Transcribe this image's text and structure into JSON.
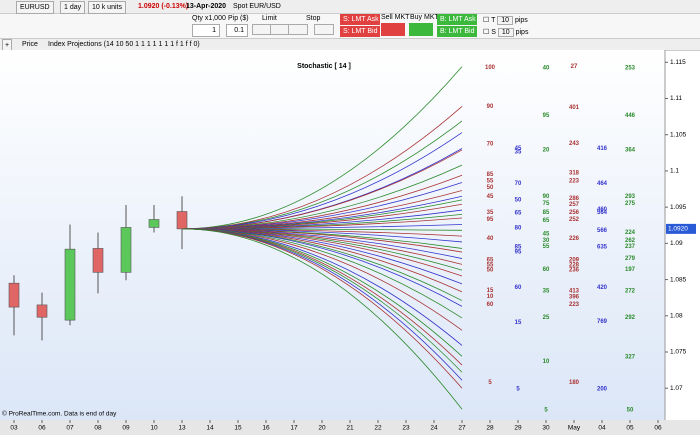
{
  "toolbar": {
    "symbol": "EURUSD",
    "period": "1 day",
    "units": "10 k units",
    "price_change": "1.0920 (-0.13%)",
    "date": "13-Apr-2020",
    "instrument": "Spot EUR/USD"
  },
  "order": {
    "qty_label": "Qty x1,000",
    "pip_label": "Pip ($)",
    "qty": "1",
    "pip": "0.1",
    "limit": "Limit",
    "stop": "Stop",
    "sell_ask": "S: LMT Ask",
    "sell_bid": "S: LMT Bid",
    "sell_mkt": "Sell MKT",
    "buy_mkt": "Buy MKT",
    "buy_ask": "B: LMT Ask",
    "buy_bid": "B: LMT Bid",
    "t": "T",
    "t_pips": "10",
    "pips1": "pips",
    "s": "S",
    "s_pips": "10",
    "pips2": "pips"
  },
  "panel": {
    "plus": "+",
    "price": "Price",
    "indicator": "Index Projections (14 10 50 1 1 1 1 1 1 1 f 1 f f 0)"
  },
  "chart_data": {
    "type": "candlestick",
    "title": "Stochastic [ 14 ]",
    "source": "© ProRealTime.com. Data is end of day",
    "categories": [
      "03",
      "06",
      "07",
      "08",
      "09",
      "10",
      "13",
      "14",
      "15",
      "16",
      "17",
      "20",
      "21",
      "22",
      "23",
      "24",
      "27",
      "28",
      "29",
      "30",
      "May",
      "04",
      "05",
      "06"
    ],
    "open": [
      1.0845,
      1.0815,
      1.0794,
      1.0893,
      1.086,
      1.0922,
      1.0944,
      null,
      null,
      null,
      null,
      null,
      null,
      null,
      null,
      null,
      null,
      null,
      null,
      null,
      null,
      null,
      null,
      null
    ],
    "high": [
      1.0856,
      1.0832,
      1.0926,
      1.0915,
      1.0953,
      1.0953,
      1.0965,
      null,
      null,
      null,
      null,
      null,
      null,
      null,
      null,
      null,
      null,
      null,
      null,
      null,
      null,
      null,
      null,
      null
    ],
    "low": [
      1.0773,
      1.0766,
      1.0787,
      1.0831,
      1.0849,
      1.0915,
      1.0892,
      null,
      null,
      null,
      null,
      null,
      null,
      null,
      null,
      null,
      null,
      null,
      null,
      null,
      null,
      null,
      null,
      null
    ],
    "close": [
      1.0812,
      1.0798,
      1.0892,
      1.086,
      1.0922,
      1.0933,
      1.092,
      null,
      null,
      null,
      null,
      null,
      null,
      null,
      null,
      null,
      null,
      null,
      null,
      null,
      null,
      null,
      null,
      null
    ],
    "up_color": "#5cc85c",
    "down_color": "#e06666",
    "ylim": [
      1.0663,
      1.1167
    ],
    "yticks": [
      1.07,
      1.075,
      1.08,
      1.085,
      1.09,
      1.095,
      1.1,
      1.105,
      1.11,
      1.115
    ],
    "last_price": {
      "value": 1.092,
      "label": "1.0920"
    },
    "projections": [
      {
        "color": "#2a8a2a",
        "values": [
          1.092,
          1.1144
        ]
      },
      {
        "color": "#a33",
        "values": [
          1.092,
          1.1089
        ]
      },
      {
        "color": "#2a8a2a",
        "values": [
          1.092,
          1.1069
        ]
      },
      {
        "color": "#33c",
        "values": [
          1.092,
          1.1053
        ]
      },
      {
        "color": "#33c",
        "values": [
          1.092,
          1.1031
        ]
      },
      {
        "color": "#a33",
        "values": [
          1.092,
          1.1029
        ]
      },
      {
        "color": "#2a8a2a",
        "values": [
          1.092,
          1.1008
        ]
      },
      {
        "color": "#a33",
        "values": [
          1.092,
          1.0994
        ]
      },
      {
        "color": "#33c",
        "values": [
          1.092,
          1.0984
        ]
      },
      {
        "color": "#a33",
        "values": [
          1.092,
          1.0973
        ]
      },
      {
        "color": "#33c",
        "values": [
          1.092,
          1.0965
        ]
      },
      {
        "color": "#2a8a2a",
        "values": [
          1.092,
          1.096
        ]
      },
      {
        "color": "#a33",
        "values": [
          1.092,
          1.0954
        ]
      },
      {
        "color": "#33c",
        "values": [
          1.092,
          1.0946
        ]
      },
      {
        "color": "#2a8a2a",
        "values": [
          1.092,
          1.094
        ]
      },
      {
        "color": "#a33",
        "values": [
          1.092,
          1.0935
        ]
      },
      {
        "color": "#33c",
        "values": [
          1.092,
          1.0926
        ]
      },
      {
        "color": "#2a8a2a",
        "values": [
          1.092,
          1.0918
        ]
      },
      {
        "color": "#a33",
        "values": [
          1.092,
          1.091
        ]
      },
      {
        "color": "#33c",
        "values": [
          1.092,
          1.0902
        ]
      },
      {
        "color": "#2a8a2a",
        "values": [
          1.092,
          1.0893
        ]
      },
      {
        "color": "#a33",
        "values": [
          1.092,
          1.0888
        ]
      },
      {
        "color": "#33c",
        "values": [
          1.092,
          1.0879
        ]
      },
      {
        "color": "#a33",
        "values": [
          1.092,
          1.0871
        ]
      },
      {
        "color": "#2a8a2a",
        "values": [
          1.092,
          1.0863
        ]
      },
      {
        "color": "#a33",
        "values": [
          1.092,
          1.0855
        ]
      },
      {
        "color": "#33c",
        "values": [
          1.092,
          1.0844
        ]
      },
      {
        "color": "#a33",
        "values": [
          1.092,
          1.0833
        ]
      },
      {
        "color": "#2a8a2a",
        "values": [
          1.092,
          1.0821
        ]
      },
      {
        "color": "#33c",
        "values": [
          1.092,
          1.0813
        ]
      },
      {
        "color": "#2a8a2a",
        "values": [
          1.092,
          1.0797
        ]
      },
      {
        "color": "#a33",
        "values": [
          1.092,
          1.078
        ]
      },
      {
        "color": "#33c",
        "values": [
          1.092,
          1.0759
        ]
      },
      {
        "color": "#2a8a2a",
        "values": [
          1.092,
          1.0744
        ]
      },
      {
        "color": "#a33",
        "values": [
          1.092,
          1.0732
        ]
      },
      {
        "color": "#2a8a2a",
        "values": [
          1.092,
          1.0722
        ]
      },
      {
        "color": "#33c",
        "values": [
          1.092,
          1.0711
        ]
      },
      {
        "color": "#a33",
        "values": [
          1.092,
          1.07
        ]
      },
      {
        "color": "#2a8a2a",
        "values": [
          1.092,
          1.0671
        ]
      }
    ],
    "label_columns": [
      {
        "color": "#a33",
        "items": [
          {
            "text": 100,
            "level": 1.1143
          },
          {
            "text": 90,
            "level": 1.1089
          },
          {
            "text": 70,
            "level": 1.1037
          },
          {
            "text": 85,
            "level": 1.0995
          },
          {
            "text": 55,
            "level": 1.0986
          },
          {
            "text": 50,
            "level": 1.0977
          },
          {
            "text": 45,
            "level": 1.0965
          },
          {
            "text": 35,
            "level": 1.0943
          },
          {
            "text": 95,
            "level": 1.0933
          },
          {
            "text": 40,
            "level": 1.0907
          },
          {
            "text": 65,
            "level": 1.0877
          },
          {
            "text": 55,
            "level": 1.087
          },
          {
            "text": 50,
            "level": 1.0863
          },
          {
            "text": 15,
            "level": 1.0835
          },
          {
            "text": 10,
            "level": 1.0827
          },
          {
            "text": 60,
            "level": 1.0816
          },
          {
            "text": 5,
            "level": 1.0708
          }
        ]
      },
      {
        "color": "#33c",
        "items": [
          {
            "text": 45,
            "level": 1.1031
          },
          {
            "text": 35,
            "level": 1.1026
          },
          {
            "text": 70,
            "level": 1.0983
          },
          {
            "text": 50,
            "level": 1.096
          },
          {
            "text": 65,
            "level": 1.0942
          },
          {
            "text": 80,
            "level": 1.0921
          },
          {
            "text": 85,
            "level": 1.0895
          },
          {
            "text": 95,
            "level": 1.0888
          },
          {
            "text": 60,
            "level": 1.0839
          },
          {
            "text": 15,
            "level": 1.0791
          },
          {
            "text": 5,
            "level": 1.0699
          }
        ]
      },
      {
        "color": "#2a8a2a",
        "items": [
          {
            "text": 40,
            "level": 1.1142
          },
          {
            "text": 95,
            "level": 1.1077
          },
          {
            "text": 20,
            "level": 1.1029
          },
          {
            "text": 90,
            "level": 1.0965
          },
          {
            "text": 75,
            "level": 1.0955
          },
          {
            "text": 85,
            "level": 1.0943
          },
          {
            "text": 65,
            "level": 1.0932
          },
          {
            "text": 45,
            "level": 1.0913
          },
          {
            "text": 30,
            "level": 1.0904
          },
          {
            "text": 55,
            "level": 1.0896
          },
          {
            "text": 60,
            "level": 1.0864
          },
          {
            "text": 35,
            "level": 1.0834
          },
          {
            "text": 25,
            "level": 1.0798
          },
          {
            "text": 10,
            "level": 1.0737
          },
          {
            "text": 5,
            "level": 1.067
          }
        ]
      },
      {
        "color": "#a33",
        "items": [
          {
            "text": 27,
            "level": 1.1144
          },
          {
            "text": 401,
            "level": 1.1088
          },
          {
            "text": 243,
            "level": 1.1038
          },
          {
            "text": 318,
            "level": 1.0997
          },
          {
            "text": 223,
            "level": 1.0986
          },
          {
            "text": 286,
            "level": 1.0962
          },
          {
            "text": 257,
            "level": 1.0954
          },
          {
            "text": 256,
            "level": 1.0943
          },
          {
            "text": 252,
            "level": 1.0933
          },
          {
            "text": 226,
            "level": 1.0907
          },
          {
            "text": 209,
            "level": 1.0877
          },
          {
            "text": 228,
            "level": 1.087
          },
          {
            "text": 236,
            "level": 1.0863
          },
          {
            "text": 413,
            "level": 1.0834
          },
          {
            "text": 396,
            "level": 1.0826
          },
          {
            "text": 223,
            "level": 1.0816
          },
          {
            "text": 180,
            "level": 1.0708
          }
        ]
      },
      {
        "color": "#33c",
        "items": [
          {
            "text": 416,
            "level": 1.1031
          },
          {
            "text": 464,
            "level": 1.0983
          },
          {
            "text": 564,
            "level": 1.0943
          },
          {
            "text": 460,
            "level": 1.0947
          },
          {
            "text": 566,
            "level": 1.0918
          },
          {
            "text": 635,
            "level": 1.0895
          },
          {
            "text": 420,
            "level": 1.0839
          },
          {
            "text": 769,
            "level": 1.0792
          },
          {
            "text": 200,
            "level": 1.0699
          }
        ]
      },
      {
        "color": "#2a8a2a",
        "items": [
          {
            "text": 253,
            "level": 1.1142
          },
          {
            "text": 446,
            "level": 1.1077
          },
          {
            "text": 364,
            "level": 1.1029
          },
          {
            "text": 293,
            "level": 1.0965
          },
          {
            "text": 275,
            "level": 1.0955
          },
          {
            "text": 224,
            "level": 1.0915
          },
          {
            "text": 262,
            "level": 1.0904
          },
          {
            "text": 237,
            "level": 1.0896
          },
          {
            "text": 279,
            "level": 1.0879
          },
          {
            "text": 197,
            "level": 1.0864
          },
          {
            "text": 272,
            "level": 1.0834
          },
          {
            "text": 292,
            "level": 1.0798
          },
          {
            "text": 327,
            "level": 1.0743
          },
          {
            "text": 50,
            "level": 1.067
          }
        ]
      }
    ]
  }
}
